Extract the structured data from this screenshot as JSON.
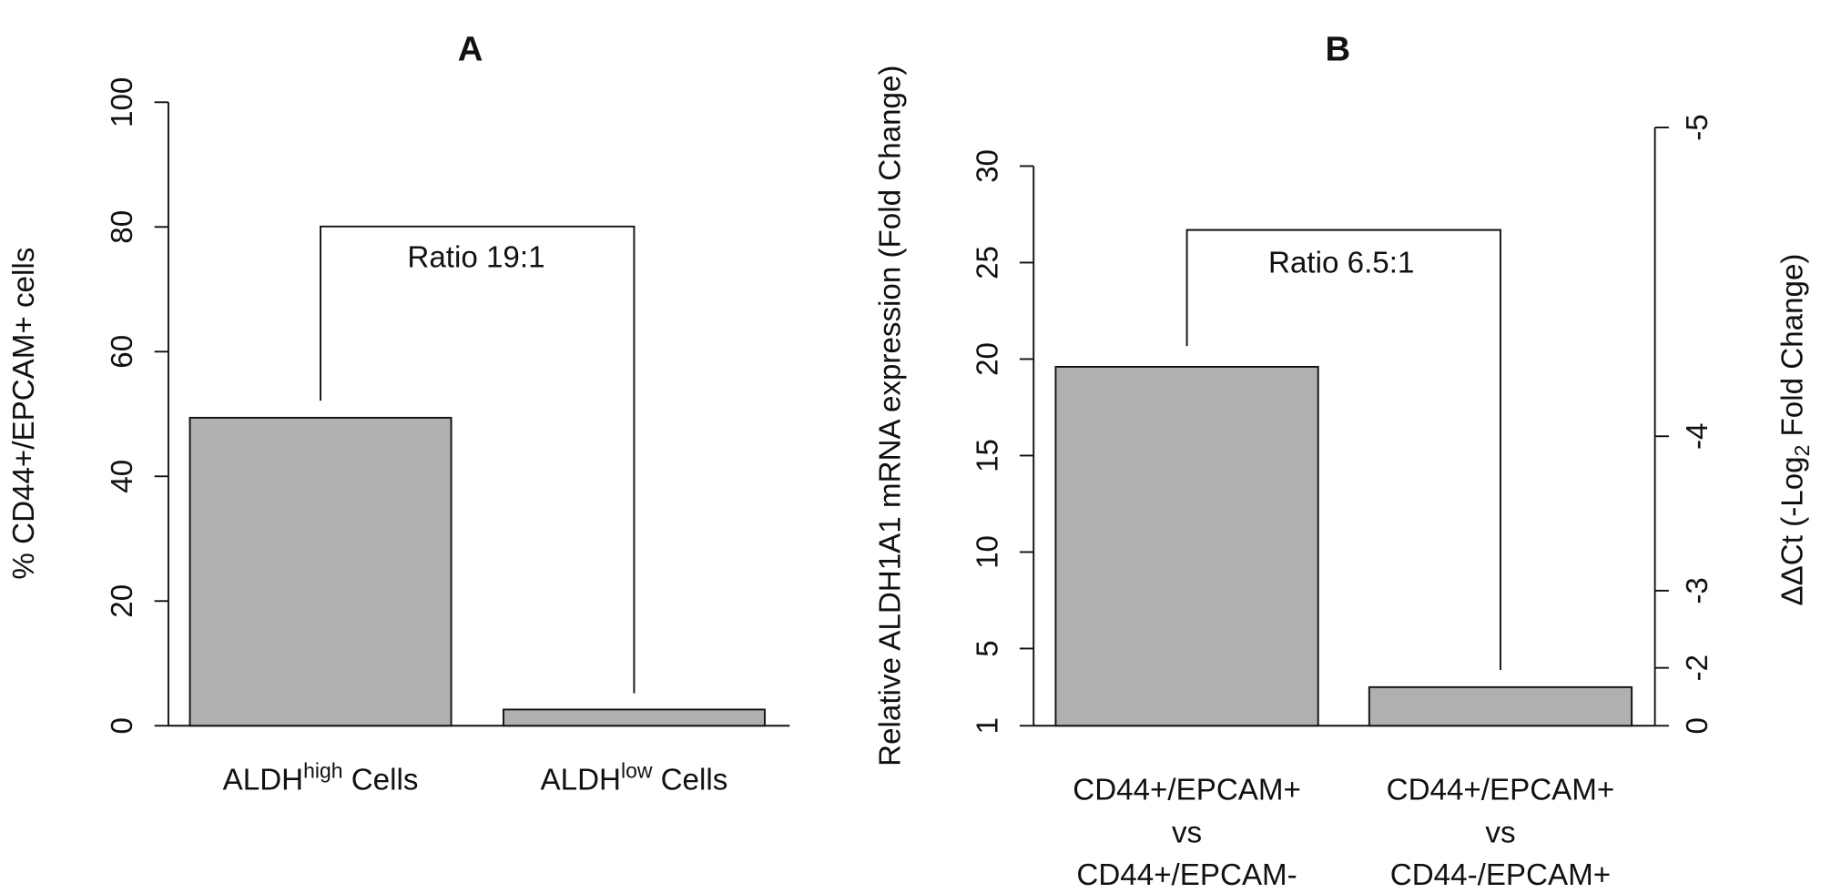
{
  "chart_data": [
    {
      "type": "bar",
      "title": "A",
      "y_label": "% CD44+/EPCAM+ cells",
      "categories": [
        [
          "ALDH",
          "high",
          " Cells"
        ],
        [
          "ALDH",
          "low",
          " Cells"
        ]
      ],
      "values": [
        49.4,
        2.6
      ],
      "color": "#b0b0b0",
      "ylim": [
        0,
        100
      ],
      "yticks": [
        0,
        20,
        40,
        60,
        80,
        100
      ],
      "annotation": "Ratio 19:1"
    },
    {
      "type": "bar",
      "title": "B",
      "y_label": "Relative ALDH1A1 mRNA expression (Fold Change)",
      "y2_label": [
        "ΔΔCt (-Log",
        "2",
        " Fold Change)"
      ],
      "categories": [
        [
          "CD44+/EPCAM+",
          "vs",
          "CD44+/EPCAM-"
        ],
        [
          "CD44+/EPCAM+",
          "vs",
          "CD44-/EPCAM+"
        ]
      ],
      "values": [
        19.6,
        3.0
      ],
      "color": "#b0b0b0",
      "ylim": [
        1,
        30
      ],
      "yticks": [
        1,
        5,
        10,
        15,
        20,
        25,
        30
      ],
      "y2lim": [
        0,
        -5
      ],
      "y2ticks": [
        0,
        -2,
        -3,
        -4,
        -5
      ],
      "y2scale": "neg-log2",
      "annotation": "Ratio 6.5:1"
    }
  ]
}
